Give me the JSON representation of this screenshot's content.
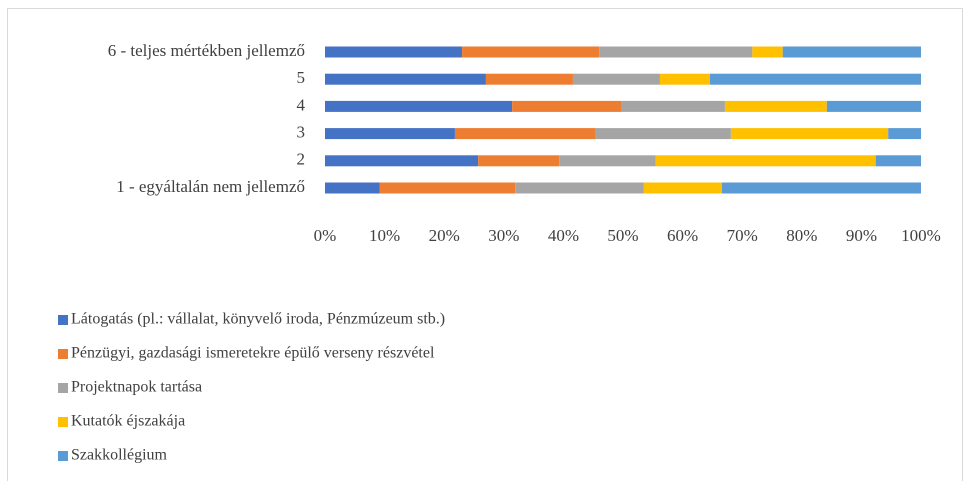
{
  "chart_data": {
    "type": "bar",
    "orientation": "horizontal",
    "stacked": true,
    "categories": [
      "1 - egyáltalán nem jellemző",
      "2",
      "3",
      "4",
      "5",
      "6 - teljes mértékben jellemző"
    ],
    "series": [
      {
        "name": "Látogatás (pl.: vállalat, könyvelő iroda, Pénzmúzeum stb.)",
        "color": "#4472c4",
        "values": [
          9.2,
          25.7,
          21.8,
          31.4,
          27,
          23
        ]
      },
      {
        "name": "Pénzügyi, gazdasági ismeretekre épülő verseny részvétel",
        "color": "#ed7d31",
        "values": [
          22.7,
          13.6,
          23.5,
          18.4,
          14.6,
          23
        ]
      },
      {
        "name": "Projektnapok tartása",
        "color": "#a5a5a5",
        "values": [
          21.6,
          16.2,
          22.8,
          17.3,
          14.6,
          25.7
        ]
      },
      {
        "name": "Kutatók éjszakája",
        "color": "#ffc000",
        "values": [
          13.1,
          36.9,
          26.4,
          17.1,
          8.4,
          5.1
        ]
      },
      {
        "name": "Szakkollégium",
        "color": "#5b9bd5",
        "values": [
          33.4,
          7.6,
          5.5,
          15.8,
          35.4,
          23.2
        ]
      }
    ],
    "xlim": [
      0,
      100
    ],
    "xticks": [
      {
        "value": 0,
        "label": "0%"
      },
      {
        "value": 10,
        "label": "10%"
      },
      {
        "value": 20,
        "label": "20%"
      },
      {
        "value": 30,
        "label": "30%"
      },
      {
        "value": 40,
        "label": "40%"
      },
      {
        "value": 50,
        "label": "50%"
      },
      {
        "value": 60,
        "label": "60%"
      },
      {
        "value": 70,
        "label": "70%"
      },
      {
        "value": 80,
        "label": "80%"
      },
      {
        "value": 90,
        "label": "90%"
      },
      {
        "value": 100,
        "label": "100%"
      }
    ],
    "grid": false,
    "legend": "bottom"
  }
}
